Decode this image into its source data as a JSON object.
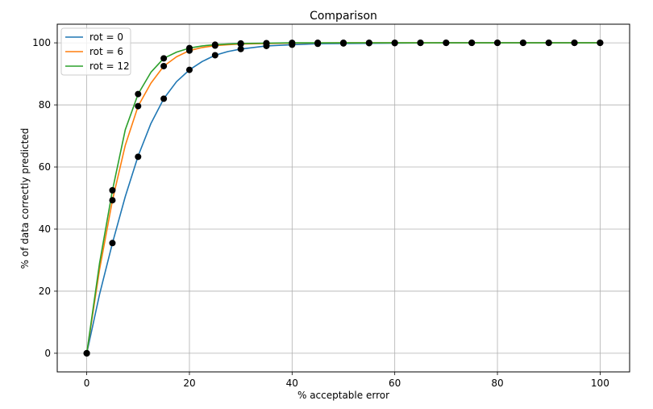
{
  "chart_data": {
    "type": "line",
    "title": "Comparison",
    "xlabel": "% acceptable error",
    "ylabel": "% of data correctly predicted",
    "xlim": [
      -5.75,
      105.75
    ],
    "ylim": [
      -6,
      106
    ],
    "xticks": [
      "0",
      "20",
      "40",
      "60",
      "80",
      "100"
    ],
    "yticks": [
      "0",
      "20",
      "40",
      "60",
      "80",
      "100"
    ],
    "grid": true,
    "legend": "top-left",
    "series": [
      {
        "name": "rot = 0",
        "color": "#1f77b4",
        "line": {
          "x": [
            0,
            2.5,
            5,
            7.5,
            10,
            12.5,
            15,
            17.5,
            20,
            22.5,
            25,
            27.5,
            30,
            35,
            40,
            45,
            50,
            60,
            70,
            80,
            90,
            100
          ],
          "y": [
            0,
            19,
            35.5,
            50.5,
            63.5,
            74,
            82,
            87.5,
            91.3,
            94,
            96,
            97.2,
            98,
            99,
            99.4,
            99.7,
            99.8,
            99.9,
            100,
            100,
            100,
            100
          ]
        },
        "markers": {
          "x": [
            0,
            5,
            10,
            15,
            20,
            25,
            30,
            35,
            40,
            45,
            50,
            55,
            60,
            65,
            70,
            75,
            80,
            85,
            90,
            95,
            100
          ],
          "y": [
            0,
            35.5,
            63.3,
            82,
            91.3,
            96,
            98,
            99,
            99.4,
            99.7,
            99.8,
            99.9,
            99.9,
            100,
            100,
            100,
            100,
            100,
            100,
            100,
            100
          ]
        }
      },
      {
        "name": "rot = 6",
        "color": "#ff7f0e",
        "line": {
          "x": [
            0,
            2.5,
            5,
            7.5,
            10,
            12.5,
            15,
            17.5,
            20,
            22.5,
            25,
            27.5,
            30,
            35,
            40,
            50,
            60,
            70,
            80,
            90,
            100
          ],
          "y": [
            0,
            27,
            49.3,
            67,
            79.6,
            87,
            92.5,
            95.5,
            97.5,
            98.5,
            99.1,
            99.4,
            99.6,
            99.8,
            99.9,
            100,
            100,
            100,
            100,
            100,
            100
          ]
        },
        "markers": {
          "x": [
            0,
            5,
            10,
            15,
            20,
            25,
            30,
            35,
            40,
            45,
            50,
            55,
            60,
            65,
            70,
            75,
            80,
            85,
            90,
            95,
            100
          ],
          "y": [
            0,
            49.3,
            79.6,
            92.5,
            97.5,
            99.1,
            99.6,
            99.8,
            99.9,
            100,
            100,
            100,
            100,
            100,
            100,
            100,
            100,
            100,
            100,
            100,
            100
          ]
        }
      },
      {
        "name": "rot = 12",
        "color": "#2ca02c",
        "line": {
          "x": [
            0,
            2.5,
            5,
            7.5,
            10,
            12.5,
            15,
            17.5,
            20,
            22.5,
            25,
            27.5,
            30,
            35,
            40,
            50,
            60,
            70,
            80,
            90,
            100
          ],
          "y": [
            0,
            29,
            52.5,
            72,
            83.5,
            90.5,
            95,
            97,
            98.3,
            99,
            99.4,
            99.6,
            99.8,
            99.9,
            100,
            100,
            100,
            100,
            100,
            100,
            100
          ]
        },
        "markers": {
          "x": [
            0,
            5,
            10,
            15,
            20,
            25,
            30,
            35,
            40,
            45,
            50,
            55,
            60,
            65,
            70,
            75,
            80,
            85,
            90,
            95,
            100
          ],
          "y": [
            0,
            52.5,
            83.5,
            95,
            98.3,
            99.4,
            99.8,
            99.9,
            100,
            100,
            100,
            100,
            100,
            100,
            100,
            100,
            100,
            100,
            100,
            100,
            100
          ]
        }
      }
    ]
  }
}
